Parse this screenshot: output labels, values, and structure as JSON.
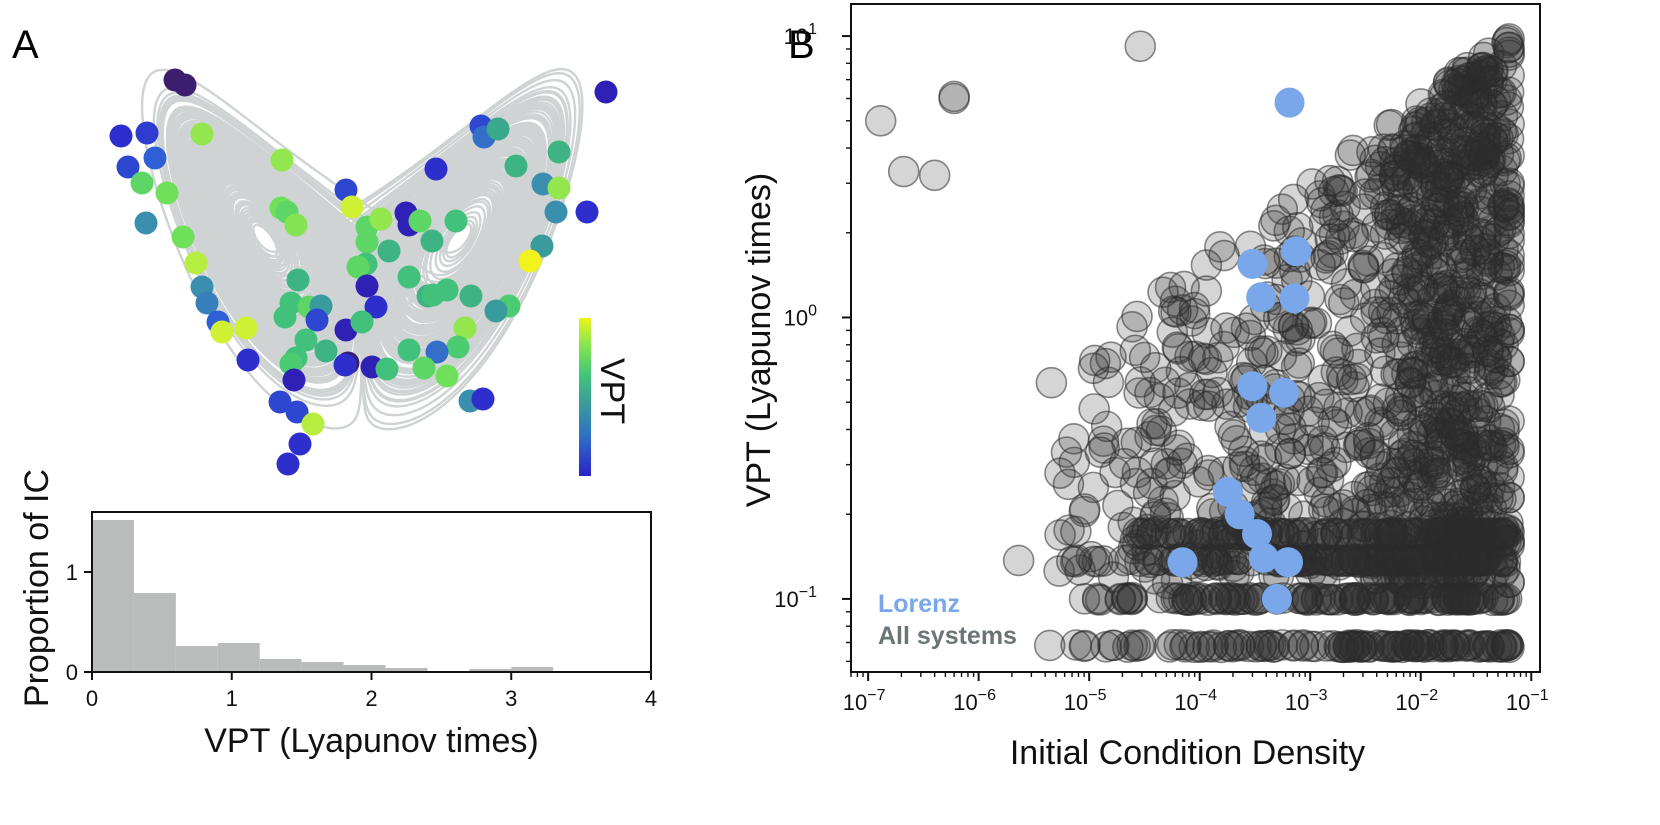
{
  "panels": {
    "a_label": "A",
    "b_label": "B"
  },
  "colors": {
    "attractor": "#cfd3d3",
    "histogram": "#b9bcba",
    "all_systems": "#2b2b2b",
    "lorenz": "#79a7ea",
    "all_systems_text": "#6b7476"
  },
  "chart_data": [
    {
      "id": "lorenz-attractor",
      "type": "scatter",
      "description_role": "initial conditions on attractor colored by VPT",
      "colorbar": {
        "label": "VPT",
        "colormap": [
          "#3b1f6e",
          "#2d22c8",
          "#2f5fd6",
          "#3a88b6",
          "#3aa88d",
          "#43c777",
          "#6fe05a",
          "#c8f03a",
          "#f2f21c"
        ]
      },
      "points": [
        {
          "x": 175,
          "y": 80,
          "vpt": 0.0
        },
        {
          "x": 185,
          "y": 85,
          "vpt": 0.0
        },
        {
          "x": 606,
          "y": 92,
          "vpt": 0.1
        },
        {
          "x": 121,
          "y": 136,
          "vpt": 0.15
        },
        {
          "x": 147,
          "y": 133,
          "vpt": 0.18
        },
        {
          "x": 128,
          "y": 167,
          "vpt": 0.2
        },
        {
          "x": 155,
          "y": 158,
          "vpt": 0.25
        },
        {
          "x": 202,
          "y": 134,
          "vpt": 0.8
        },
        {
          "x": 142,
          "y": 183,
          "vpt": 0.7
        },
        {
          "x": 167,
          "y": 193,
          "vpt": 0.75
        },
        {
          "x": 146,
          "y": 223,
          "vpt": 0.4
        },
        {
          "x": 183,
          "y": 237,
          "vpt": 0.75
        },
        {
          "x": 196,
          "y": 263,
          "vpt": 0.85
        },
        {
          "x": 202,
          "y": 287,
          "vpt": 0.4
        },
        {
          "x": 207,
          "y": 303,
          "vpt": 0.35
        },
        {
          "x": 218,
          "y": 322,
          "vpt": 0.25
        },
        {
          "x": 222,
          "y": 332,
          "vpt": 0.9
        },
        {
          "x": 246,
          "y": 328,
          "vpt": 0.9
        },
        {
          "x": 248,
          "y": 360,
          "vpt": 0.15
        },
        {
          "x": 282,
          "y": 160,
          "vpt": 0.8
        },
        {
          "x": 281,
          "y": 208,
          "vpt": 0.75
        },
        {
          "x": 287,
          "y": 212,
          "vpt": 0.7
        },
        {
          "x": 296,
          "y": 225,
          "vpt": 0.78
        },
        {
          "x": 346,
          "y": 190,
          "vpt": 0.2
        },
        {
          "x": 352,
          "y": 207,
          "vpt": 0.9
        },
        {
          "x": 481,
          "y": 126,
          "vpt": 0.2
        },
        {
          "x": 484,
          "y": 137,
          "vpt": 0.3
        },
        {
          "x": 498,
          "y": 129,
          "vpt": 0.5
        },
        {
          "x": 436,
          "y": 169,
          "vpt": 0.15
        },
        {
          "x": 516,
          "y": 166,
          "vpt": 0.55
        },
        {
          "x": 559,
          "y": 152,
          "vpt": 0.55
        },
        {
          "x": 543,
          "y": 184,
          "vpt": 0.4
        },
        {
          "x": 559,
          "y": 188,
          "vpt": 0.8
        },
        {
          "x": 556,
          "y": 212,
          "vpt": 0.4
        },
        {
          "x": 587,
          "y": 212,
          "vpt": 0.15
        },
        {
          "x": 542,
          "y": 246,
          "vpt": 0.45
        },
        {
          "x": 530,
          "y": 261,
          "vpt": 1.0
        },
        {
          "x": 367,
          "y": 227,
          "vpt": 0.7
        },
        {
          "x": 381,
          "y": 219,
          "vpt": 0.8
        },
        {
          "x": 406,
          "y": 213,
          "vpt": 0.1
        },
        {
          "x": 409,
          "y": 225,
          "vpt": 0.1
        },
        {
          "x": 420,
          "y": 221,
          "vpt": 0.7
        },
        {
          "x": 432,
          "y": 241,
          "vpt": 0.55
        },
        {
          "x": 456,
          "y": 221,
          "vpt": 0.6
        },
        {
          "x": 389,
          "y": 251,
          "vpt": 0.55
        },
        {
          "x": 367,
          "y": 242,
          "vpt": 0.7
        },
        {
          "x": 366,
          "y": 264,
          "vpt": 0.6
        },
        {
          "x": 358,
          "y": 267,
          "vpt": 0.7
        },
        {
          "x": 298,
          "y": 280,
          "vpt": 0.55
        },
        {
          "x": 291,
          "y": 303,
          "vpt": 0.6
        },
        {
          "x": 309,
          "y": 307,
          "vpt": 0.7
        },
        {
          "x": 321,
          "y": 306,
          "vpt": 0.45
        },
        {
          "x": 317,
          "y": 320,
          "vpt": 0.2
        },
        {
          "x": 285,
          "y": 317,
          "vpt": 0.6
        },
        {
          "x": 306,
          "y": 340,
          "vpt": 0.6
        },
        {
          "x": 296,
          "y": 358,
          "vpt": 0.6
        },
        {
          "x": 291,
          "y": 364,
          "vpt": 0.65
        },
        {
          "x": 294,
          "y": 380,
          "vpt": 0.1
        },
        {
          "x": 326,
          "y": 351,
          "vpt": 0.55
        },
        {
          "x": 346,
          "y": 330,
          "vpt": 0.1
        },
        {
          "x": 367,
          "y": 286,
          "vpt": 0.1
        },
        {
          "x": 376,
          "y": 307,
          "vpt": 0.15
        },
        {
          "x": 362,
          "y": 322,
          "vpt": 0.6
        },
        {
          "x": 348,
          "y": 363,
          "vpt": 0.0
        },
        {
          "x": 345,
          "y": 365,
          "vpt": 0.15
        },
        {
          "x": 372,
          "y": 367,
          "vpt": 0.1
        },
        {
          "x": 387,
          "y": 369,
          "vpt": 0.6
        },
        {
          "x": 409,
          "y": 277,
          "vpt": 0.6
        },
        {
          "x": 428,
          "y": 296,
          "vpt": 0.55
        },
        {
          "x": 447,
          "y": 290,
          "vpt": 0.6
        },
        {
          "x": 471,
          "y": 296,
          "vpt": 0.55
        },
        {
          "x": 433,
          "y": 295,
          "vpt": 0.6
        },
        {
          "x": 509,
          "y": 306,
          "vpt": 0.65
        },
        {
          "x": 496,
          "y": 311,
          "vpt": 0.45
        },
        {
          "x": 465,
          "y": 328,
          "vpt": 0.8
        },
        {
          "x": 458,
          "y": 347,
          "vpt": 0.65
        },
        {
          "x": 437,
          "y": 352,
          "vpt": 0.3
        },
        {
          "x": 409,
          "y": 350,
          "vpt": 0.6
        },
        {
          "x": 424,
          "y": 368,
          "vpt": 0.7
        },
        {
          "x": 447,
          "y": 376,
          "vpt": 0.75
        },
        {
          "x": 470,
          "y": 401,
          "vpt": 0.4
        },
        {
          "x": 483,
          "y": 399,
          "vpt": 0.15
        },
        {
          "x": 280,
          "y": 402,
          "vpt": 0.2
        },
        {
          "x": 297,
          "y": 412,
          "vpt": 0.2
        },
        {
          "x": 313,
          "y": 424,
          "vpt": 0.85
        },
        {
          "x": 300,
          "y": 444,
          "vpt": 0.15
        },
        {
          "x": 288,
          "y": 464,
          "vpt": 0.15
        }
      ]
    },
    {
      "id": "vpt-histogram",
      "type": "bar",
      "xlabel": "VPT (Lyapunov times)",
      "ylabel": "Proportion of IC",
      "xlim": [
        0,
        4
      ],
      "ylim": [
        0,
        1.6
      ],
      "xticks": [
        "0",
        "1",
        "2",
        "3",
        "4"
      ],
      "yticks": [
        "0",
        "1"
      ],
      "bins": [
        {
          "start": 0.0,
          "end": 0.3,
          "value": 1.52
        },
        {
          "start": 0.3,
          "end": 0.6,
          "value": 0.79
        },
        {
          "start": 0.6,
          "end": 0.9,
          "value": 0.26
        },
        {
          "start": 0.9,
          "end": 1.2,
          "value": 0.29
        },
        {
          "start": 1.2,
          "end": 1.5,
          "value": 0.13
        },
        {
          "start": 1.5,
          "end": 1.8,
          "value": 0.1
        },
        {
          "start": 1.8,
          "end": 2.1,
          "value": 0.07
        },
        {
          "start": 2.1,
          "end": 2.4,
          "value": 0.04
        },
        {
          "start": 2.4,
          "end": 2.7,
          "value": 0.01
        },
        {
          "start": 2.7,
          "end": 3.0,
          "value": 0.03
        },
        {
          "start": 3.0,
          "end": 3.3,
          "value": 0.05
        }
      ]
    },
    {
      "id": "vpt-vs-density",
      "type": "scatter",
      "xscale": "log",
      "yscale": "log",
      "xlabel": "Initial Condition Density",
      "ylabel": "VPT (Lyapunov times)",
      "xlim": [
        7e-08,
        0.12
      ],
      "ylim": [
        0.055,
        13
      ],
      "xticks": [
        {
          "value": 1e-07,
          "base": "10",
          "exp": "−7"
        },
        {
          "value": 1e-06,
          "base": "10",
          "exp": "−6"
        },
        {
          "value": 1e-05,
          "base": "10",
          "exp": "−5"
        },
        {
          "value": 0.0001,
          "base": "10",
          "exp": "−4"
        },
        {
          "value": 0.001,
          "base": "10",
          "exp": "−3"
        },
        {
          "value": 0.01,
          "base": "10",
          "exp": "−2"
        },
        {
          "value": 0.1,
          "base": "10",
          "exp": "−1"
        }
      ],
      "yticks": [
        {
          "value": 0.1,
          "base": "10",
          "exp": "−1"
        },
        {
          "value": 1,
          "base": "10",
          "exp": "0"
        },
        {
          "value": 10,
          "base": "10",
          "exp": "1"
        }
      ],
      "legend": {
        "placement": "lower-left",
        "entries": [
          {
            "name": "Lorenz"
          },
          {
            "name": "All systems"
          }
        ]
      },
      "lorenz_points": [
        {
          "x": 0.00065,
          "y": 5.8
        },
        {
          "x": 0.0003,
          "y": 1.55
        },
        {
          "x": 0.00075,
          "y": 1.72
        },
        {
          "x": 0.00036,
          "y": 1.18
        },
        {
          "x": 0.00072,
          "y": 1.17
        },
        {
          "x": 0.0003,
          "y": 0.57
        },
        {
          "x": 0.00058,
          "y": 0.54
        },
        {
          "x": 0.00036,
          "y": 0.44
        },
        {
          "x": 0.00018,
          "y": 0.24
        },
        {
          "x": 0.00023,
          "y": 0.2
        },
        {
          "x": 0.00033,
          "y": 0.17
        },
        {
          "x": 7e-05,
          "y": 0.135
        },
        {
          "x": 0.00038,
          "y": 0.14
        },
        {
          "x": 0.00063,
          "y": 0.135
        },
        {
          "x": 0.0005,
          "y": 0.1
        }
      ],
      "all_systems_outliers": [
        {
          "x": 1.3e-07,
          "y": 5.0
        },
        {
          "x": 2.1e-07,
          "y": 3.3
        },
        {
          "x": 4e-07,
          "y": 3.2
        },
        {
          "x": 6e-07,
          "y": 6.1
        },
        {
          "x": 6e-07,
          "y": 6.0
        },
        {
          "x": 2.9e-05,
          "y": 9.2
        },
        {
          "x": 2.3e-06,
          "y": 0.137
        }
      ]
    }
  ]
}
